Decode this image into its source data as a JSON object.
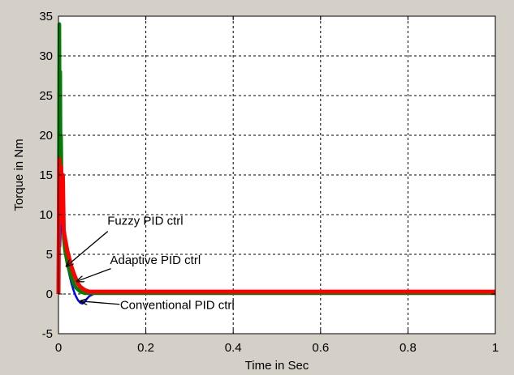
{
  "chart_data": {
    "type": "line",
    "xlabel": "Time in Sec",
    "ylabel": "Torque in Nm",
    "xlim": [
      0,
      1
    ],
    "ylim": [
      -5,
      35
    ],
    "xticks": [
      0,
      0.2,
      0.4,
      0.6,
      0.8,
      1
    ],
    "xtick_labels": [
      "0",
      "0.2",
      "0.4",
      "0.6",
      "0.8",
      "1"
    ],
    "yticks": [
      -5,
      0,
      5,
      10,
      15,
      20,
      25,
      30,
      35
    ],
    "ytick_labels": [
      "-5",
      "0",
      "5",
      "10",
      "15",
      "20",
      "25",
      "30",
      "35"
    ],
    "grid": true,
    "series": [
      {
        "name": "Conventional PID ctrl",
        "color": "#0000ff",
        "x": [
          0,
          0.002,
          0.004,
          0.006,
          0.008,
          0.01,
          0.012,
          0.015,
          0.02,
          0.025,
          0.03,
          0.035,
          0.04,
          0.045,
          0.05,
          0.055,
          0.06,
          0.065,
          0.07,
          0.08,
          0.09,
          0.1,
          0.15,
          0.3,
          0.5,
          0.7,
          1.0
        ],
        "y": [
          0,
          12,
          6,
          10,
          8,
          12,
          7,
          5.5,
          3.8,
          2.4,
          1.3,
          0.4,
          -0.3,
          -0.8,
          -1.1,
          -1.2,
          -1.0,
          -0.6,
          -0.3,
          0.0,
          0.1,
          0.1,
          0.1,
          0.1,
          0.1,
          0.1,
          0.1
        ]
      },
      {
        "name": "Fuzzy PID ctrl",
        "color": "#008000",
        "x": [
          0,
          0.002,
          0.003,
          0.004,
          0.005,
          0.006,
          0.008,
          0.01,
          0.012,
          0.015,
          0.02,
          0.025,
          0.03,
          0.035,
          0.04,
          0.05,
          0.06,
          0.07,
          0.08,
          0.1,
          0.2,
          0.4,
          0.6,
          0.8,
          1.0
        ],
        "y": [
          0,
          34,
          20,
          28,
          14,
          20,
          9,
          12,
          7,
          5.5,
          4.0,
          2.9,
          2.0,
          1.3,
          0.8,
          0.3,
          0.1,
          0.1,
          0.1,
          0.1,
          0.1,
          0.1,
          0.1,
          0.1,
          0.1
        ]
      },
      {
        "name": "Adaptive PID ctrl",
        "color": "#ff0000",
        "x": [
          0,
          0.002,
          0.004,
          0.006,
          0.008,
          0.01,
          0.012,
          0.015,
          0.02,
          0.025,
          0.03,
          0.035,
          0.04,
          0.045,
          0.05,
          0.06,
          0.07,
          0.08,
          0.1,
          0.2,
          0.4,
          0.6,
          0.8,
          1.0
        ],
        "y": [
          0,
          17,
          10,
          16,
          9,
          15,
          8,
          7,
          5.5,
          4.4,
          3.4,
          2.6,
          1.9,
          1.3,
          0.9,
          0.5,
          0.3,
          0.3,
          0.3,
          0.3,
          0.3,
          0.3,
          0.3,
          0.3
        ]
      }
    ],
    "annotations": [
      {
        "text": "Fuzzy PID ctrl",
        "arrow_to": [
          0.018,
          3.5
        ]
      },
      {
        "text": "Adaptive PID ctrl",
        "arrow_to": [
          0.042,
          1.6
        ]
      },
      {
        "text": "Conventional PID ctrl",
        "arrow_to": [
          0.05,
          -0.9
        ]
      }
    ]
  }
}
